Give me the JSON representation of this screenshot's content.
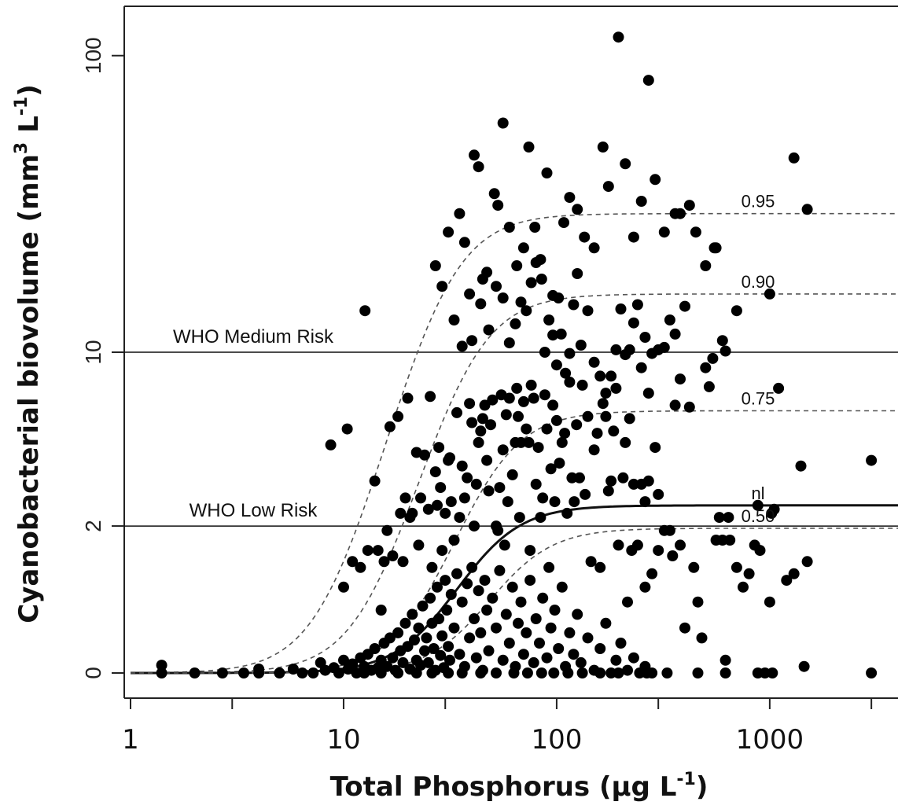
{
  "chart_data": {
    "type": "scatter",
    "title": "",
    "xlabel": "Total Phosphorus (μg L",
    "xlabel_sup": "-1",
    "xlabel_tail": ")",
    "ylabel": "Cyanobacterial biovolume (mm",
    "ylabel_sup1": "3",
    "ylabel_mid": " L",
    "ylabel_sup2": "-1",
    "ylabel_tail": ")",
    "x_scale": "log10",
    "y_scale": "log10(y+1)",
    "xlim": [
      1,
      4000
    ],
    "ylim": [
      0,
      120
    ],
    "x_ticks": [
      1,
      10,
      100,
      1000
    ],
    "x_minor_ticks": [
      3,
      30,
      300,
      3000
    ],
    "y_ticks": [
      0,
      2,
      10,
      100
    ],
    "grid": false,
    "reference_lines": [
      {
        "label": "WHO Medium Risk",
        "y": 10
      },
      {
        "label": "WHO Low Risk",
        "y": 2
      }
    ],
    "curves": [
      {
        "label": "0.95",
        "style": "dashed",
        "asymptote": 30,
        "half_x": 28,
        "k": 3.0
      },
      {
        "label": "0.90",
        "style": "dashed",
        "asymptote": 16,
        "half_x": 36,
        "k": 3.0
      },
      {
        "label": "0.75",
        "style": "dashed",
        "asymptote": 6.1,
        "half_x": 46,
        "k": 3.0
      },
      {
        "label": "nl",
        "style": "solid",
        "asymptote": 2.5,
        "half_x": 42,
        "k": 3.0
      },
      {
        "label": "0.50",
        "style": "dashed",
        "asymptote": 1.95,
        "half_x": 58,
        "k": 3.0
      }
    ],
    "points": [
      [
        1.4,
        0.06
      ],
      [
        1.4,
        0
      ],
      [
        2,
        0
      ],
      [
        2.7,
        0
      ],
      [
        3.4,
        0
      ],
      [
        4,
        0.03
      ],
      [
        4,
        0
      ],
      [
        5,
        0
      ],
      [
        5.8,
        0.03
      ],
      [
        6.4,
        0
      ],
      [
        7.2,
        0
      ],
      [
        7.8,
        0.08
      ],
      [
        8.2,
        0.02
      ],
      [
        9,
        0.04
      ],
      [
        9.5,
        0
      ],
      [
        10,
        0.1
      ],
      [
        10.5,
        0.03
      ],
      [
        11,
        0.07
      ],
      [
        11.5,
        0
      ],
      [
        12,
        0.12
      ],
      [
        12.5,
        0.05
      ],
      [
        13,
        0.15
      ],
      [
        13.5,
        0.02
      ],
      [
        14,
        0.2
      ],
      [
        14.5,
        0.04
      ],
      [
        15,
        0.1
      ],
      [
        15.5,
        0.25
      ],
      [
        16,
        0.05
      ],
      [
        16.5,
        0.3
      ],
      [
        17,
        0.12
      ],
      [
        17.5,
        0.02
      ],
      [
        18,
        0.35
      ],
      [
        18.5,
        0.18
      ],
      [
        19,
        0.08
      ],
      [
        19.5,
        0.45
      ],
      [
        20,
        0.22
      ],
      [
        20.5,
        0.03
      ],
      [
        21,
        0.55
      ],
      [
        21.5,
        0.28
      ],
      [
        22,
        0.1
      ],
      [
        22.5,
        0.4
      ],
      [
        23,
        0.06
      ],
      [
        23.5,
        0.65
      ],
      [
        24,
        0.18
      ],
      [
        24.5,
        0.3
      ],
      [
        25,
        0.08
      ],
      [
        25.5,
        0.75
      ],
      [
        26,
        0.45
      ],
      [
        26.5,
        0.2
      ],
      [
        27,
        0.02
      ],
      [
        27.5,
        0.9
      ],
      [
        28,
        0.5
      ],
      [
        28.5,
        0.14
      ],
      [
        29,
        0.32
      ],
      [
        29.5,
        0.04
      ],
      [
        30,
        1.0
      ],
      [
        30.5,
        0.6
      ],
      [
        31,
        0.22
      ],
      [
        31.5,
        0.1
      ],
      [
        32,
        0.8
      ],
      [
        33,
        0.4
      ],
      [
        34,
        1.1
      ],
      [
        35,
        0.15
      ],
      [
        36,
        0.7
      ],
      [
        37,
        0.05
      ],
      [
        38,
        0.95
      ],
      [
        39,
        0.3
      ],
      [
        40,
        1.2
      ],
      [
        41,
        0.5
      ],
      [
        42,
        0.12
      ],
      [
        43,
        0.85
      ],
      [
        44,
        0.35
      ],
      [
        45,
        0.02
      ],
      [
        46,
        1.0
      ],
      [
        47,
        0.6
      ],
      [
        48,
        0.18
      ],
      [
        50,
        0.75
      ],
      [
        52,
        0.4
      ],
      [
        54,
        1.15
      ],
      [
        56,
        0.1
      ],
      [
        58,
        0.55
      ],
      [
        60,
        0.25
      ],
      [
        62,
        0.9
      ],
      [
        64,
        0.05
      ],
      [
        66,
        0.45
      ],
      [
        68,
        0.7
      ],
      [
        70,
        0.15
      ],
      [
        72,
        0.35
      ],
      [
        75,
        1.0
      ],
      [
        78,
        0.08
      ],
      [
        80,
        0.5
      ],
      [
        83,
        0.25
      ],
      [
        86,
        0.75
      ],
      [
        90,
        0.12
      ],
      [
        94,
        0.4
      ],
      [
        98,
        0.6
      ],
      [
        102,
        0.2
      ],
      [
        106,
        0.9
      ],
      [
        110,
        0.05
      ],
      [
        115,
        0.35
      ],
      [
        120,
        0.15
      ],
      [
        125,
        0.55
      ],
      [
        130,
        0.08
      ],
      [
        140,
        0.3
      ],
      [
        150,
        0.02
      ],
      [
        160,
        0.2
      ],
      [
        170,
        0.45
      ],
      [
        180,
        0
      ],
      [
        190,
        0.1
      ],
      [
        200,
        0.25
      ],
      [
        215,
        0.02
      ],
      [
        230,
        0.12
      ],
      [
        245,
        0
      ],
      [
        260,
        0.05
      ],
      [
        280,
        0
      ],
      [
        8.7,
        4.5
      ],
      [
        10.4,
        5.2
      ],
      [
        12.6,
        14
      ],
      [
        10,
        0.9
      ],
      [
        11,
        1.3
      ],
      [
        12,
        1.2
      ],
      [
        13,
        1.5
      ],
      [
        14,
        3.2
      ],
      [
        14.5,
        1.5
      ],
      [
        15,
        0.6
      ],
      [
        15.5,
        1.3
      ],
      [
        16,
        1.9
      ],
      [
        16.5,
        5.3
      ],
      [
        17,
        1.4
      ],
      [
        18,
        5.8
      ],
      [
        18.5,
        2.3
      ],
      [
        19,
        1.3
      ],
      [
        19.5,
        2.7
      ],
      [
        20,
        6.8
      ],
      [
        20.5,
        2.2
      ],
      [
        21,
        2.3
      ],
      [
        22,
        4.2
      ],
      [
        22.5,
        1.6
      ],
      [
        23,
        2.7
      ],
      [
        24,
        4.1
      ],
      [
        25,
        2.4
      ],
      [
        25.5,
        6.9
      ],
      [
        26,
        1.2
      ],
      [
        27,
        3.5
      ],
      [
        27.5,
        2.5
      ],
      [
        28,
        4.4
      ],
      [
        28.5,
        3.0
      ],
      [
        29,
        1.5
      ],
      [
        30,
        2.3
      ],
      [
        31,
        3.9
      ],
      [
        31.5,
        4.0
      ],
      [
        32,
        2.6
      ],
      [
        33,
        1.7
      ],
      [
        34,
        6.0
      ],
      [
        35,
        2.2
      ],
      [
        36,
        3.7
      ],
      [
        37,
        2.7
      ],
      [
        38,
        3.3
      ],
      [
        39,
        6.5
      ],
      [
        40,
        5.5
      ],
      [
        41,
        2.0
      ],
      [
        42,
        3.1
      ],
      [
        43,
        4.6
      ],
      [
        44,
        5.1
      ],
      [
        45,
        5.7
      ],
      [
        46,
        6.4
      ],
      [
        47,
        3.9
      ],
      [
        48,
        2.9
      ],
      [
        49,
        5.4
      ],
      [
        50,
        6.7
      ],
      [
        52,
        2.0
      ],
      [
        53,
        1.9
      ],
      [
        54,
        3.0
      ],
      [
        55,
        7.0
      ],
      [
        56,
        4.3
      ],
      [
        57,
        1.6
      ],
      [
        58,
        5.9
      ],
      [
        59,
        2.6
      ],
      [
        60,
        6.8
      ],
      [
        62,
        3.4
      ],
      [
        64,
        4.6
      ],
      [
        65,
        7.4
      ],
      [
        66,
        5.8
      ],
      [
        67,
        2.2
      ],
      [
        68,
        4.6
      ],
      [
        70,
        6.6
      ],
      [
        72,
        5.2
      ],
      [
        74,
        4.6
      ],
      [
        75,
        1.5
      ],
      [
        76,
        7.6
      ],
      [
        78,
        6.8
      ],
      [
        80,
        3.1
      ],
      [
        82,
        4.4
      ],
      [
        84,
        2.2
      ],
      [
        86,
        2.7
      ],
      [
        88,
        7.0
      ],
      [
        90,
        5.2
      ],
      [
        92,
        1.2
      ],
      [
        94,
        3.6
      ],
      [
        96,
        6.4
      ],
      [
        98,
        2.6
      ],
      [
        100,
        5.6
      ],
      [
        103,
        3.8
      ],
      [
        106,
        4.6
      ],
      [
        109,
        5.0
      ],
      [
        112,
        2.3
      ],
      [
        115,
        7.8
      ],
      [
        118,
        3.3
      ],
      [
        121,
        2.6
      ],
      [
        124,
        5.4
      ],
      [
        128,
        3.3
      ],
      [
        132,
        7.6
      ],
      [
        136,
        2.8
      ],
      [
        140,
        5.8
      ],
      [
        145,
        1.3
      ],
      [
        150,
        4.3
      ],
      [
        155,
        5.0
      ],
      [
        160,
        1.2
      ],
      [
        165,
        6.5
      ],
      [
        170,
        5.8
      ],
      [
        175,
        2.9
      ],
      [
        180,
        3.2
      ],
      [
        185,
        5.1
      ],
      [
        190,
        7.4
      ],
      [
        195,
        1.6
      ],
      [
        205,
        3.3
      ],
      [
        210,
        4.6
      ],
      [
        215,
        0.7
      ],
      [
        220,
        5.7
      ],
      [
        225,
        1.5
      ],
      [
        230,
        3.1
      ],
      [
        240,
        1.6
      ],
      [
        250,
        3.1
      ],
      [
        260,
        0.9
      ],
      [
        270,
        3.2
      ],
      [
        280,
        1.1
      ],
      [
        290,
        4.4
      ],
      [
        300,
        1.5
      ],
      [
        320,
        1.9
      ],
      [
        340,
        1.9
      ],
      [
        350,
        1.4
      ],
      [
        360,
        6.4
      ],
      [
        380,
        1.6
      ],
      [
        400,
        0.4
      ],
      [
        420,
        6.3
      ],
      [
        440,
        1.2
      ],
      [
        460,
        0.7
      ],
      [
        480,
        0.3
      ],
      [
        500,
        8.8
      ],
      [
        520,
        7.5
      ],
      [
        540,
        9.5
      ],
      [
        560,
        1.7
      ],
      [
        580,
        2.2
      ],
      [
        600,
        1.7
      ],
      [
        620,
        0.1
      ],
      [
        650,
        1.7
      ],
      [
        700,
        1.2
      ],
      [
        750,
        0.9
      ],
      [
        800,
        1.1
      ],
      [
        850,
        1.6
      ],
      [
        900,
        1.5
      ],
      [
        950,
        0
      ],
      [
        1000,
        0.7
      ],
      [
        1050,
        2.4
      ],
      [
        1100,
        7.4
      ],
      [
        1200,
        1.0
      ],
      [
        1300,
        1.1
      ],
      [
        1400,
        3.7
      ],
      [
        1500,
        1.3
      ],
      [
        3000,
        3.9
      ],
      [
        12.5,
        0
      ],
      [
        15,
        0
      ],
      [
        18,
        0
      ],
      [
        22,
        0
      ],
      [
        26,
        0
      ],
      [
        31,
        0
      ],
      [
        36,
        0
      ],
      [
        44,
        0
      ],
      [
        52,
        0
      ],
      [
        63,
        0
      ],
      [
        73,
        0
      ],
      [
        85,
        0
      ],
      [
        97,
        0
      ],
      [
        113,
        0
      ],
      [
        132,
        0
      ],
      [
        160,
        0
      ],
      [
        195,
        0
      ],
      [
        265,
        0
      ],
      [
        330,
        0
      ],
      [
        460,
        0
      ],
      [
        620,
        0
      ],
      [
        880,
        0
      ],
      [
        1030,
        0
      ],
      [
        1450,
        0.05
      ],
      [
        3000,
        0
      ],
      [
        36,
        10.5
      ],
      [
        40,
        11
      ],
      [
        44,
        14.8
      ],
      [
        48,
        12
      ],
      [
        52,
        17
      ],
      [
        56,
        15.5
      ],
      [
        60,
        10.8
      ],
      [
        64,
        12.6
      ],
      [
        68,
        15
      ],
      [
        72,
        14
      ],
      [
        76,
        17.5
      ],
      [
        80,
        20.5
      ],
      [
        84,
        21
      ],
      [
        88,
        10
      ],
      [
        92,
        13
      ],
      [
        96,
        11.5
      ],
      [
        100,
        9
      ],
      [
        105,
        11.6
      ],
      [
        110,
        8.4
      ],
      [
        115,
        9.9
      ],
      [
        120,
        14.7
      ],
      [
        125,
        18.8
      ],
      [
        130,
        10.6
      ],
      [
        140,
        14
      ],
      [
        150,
        9.2
      ],
      [
        160,
        8.2
      ],
      [
        170,
        7.1
      ],
      [
        180,
        8.2
      ],
      [
        190,
        10.2
      ],
      [
        200,
        14.2
      ],
      [
        210,
        9.8
      ],
      [
        220,
        10.2
      ],
      [
        230,
        12.7
      ],
      [
        240,
        14.7
      ],
      [
        250,
        8.8
      ],
      [
        260,
        11.3
      ],
      [
        270,
        7.1
      ],
      [
        280,
        9.9
      ],
      [
        300,
        10.2
      ],
      [
        320,
        10.4
      ],
      [
        340,
        13.0
      ],
      [
        360,
        11.6
      ],
      [
        380,
        8.0
      ],
      [
        400,
        14.5
      ],
      [
        450,
        26
      ],
      [
        500,
        20
      ],
      [
        550,
        23
      ],
      [
        600,
        11
      ],
      [
        620,
        10.1
      ],
      [
        700,
        14
      ],
      [
        27,
        20
      ],
      [
        29,
        17
      ],
      [
        31,
        26
      ],
      [
        33,
        13
      ],
      [
        35,
        30
      ],
      [
        37,
        24
      ],
      [
        39,
        16
      ],
      [
        41,
        47
      ],
      [
        43,
        43
      ],
      [
        45,
        18
      ],
      [
        47,
        19
      ],
      [
        51,
        35
      ],
      [
        53,
        32
      ],
      [
        56,
        60
      ],
      [
        60,
        27
      ],
      [
        65,
        20
      ],
      [
        70,
        23
      ],
      [
        74,
        50
      ],
      [
        79,
        27
      ],
      [
        85,
        18
      ],
      [
        90,
        41
      ],
      [
        96,
        15.8
      ],
      [
        102,
        15.5
      ],
      [
        108,
        28
      ],
      [
        115,
        34
      ],
      [
        125,
        31
      ],
      [
        135,
        25
      ],
      [
        150,
        23
      ],
      [
        165,
        50
      ],
      [
        175,
        37
      ],
      [
        195,
        115
      ],
      [
        210,
        44
      ],
      [
        230,
        25
      ],
      [
        250,
        33
      ],
      [
        270,
        83
      ],
      [
        290,
        39
      ],
      [
        320,
        26
      ],
      [
        360,
        30
      ],
      [
        380,
        30
      ],
      [
        420,
        32
      ],
      [
        560,
        23
      ],
      [
        1000,
        16
      ],
      [
        1300,
        46
      ],
      [
        1500,
        31
      ],
      [
        260,
        2.6
      ],
      [
        300,
        2.8
      ],
      [
        640,
        2.2
      ],
      [
        1020,
        2.3
      ],
      [
        880,
        2.5
      ]
    ]
  }
}
